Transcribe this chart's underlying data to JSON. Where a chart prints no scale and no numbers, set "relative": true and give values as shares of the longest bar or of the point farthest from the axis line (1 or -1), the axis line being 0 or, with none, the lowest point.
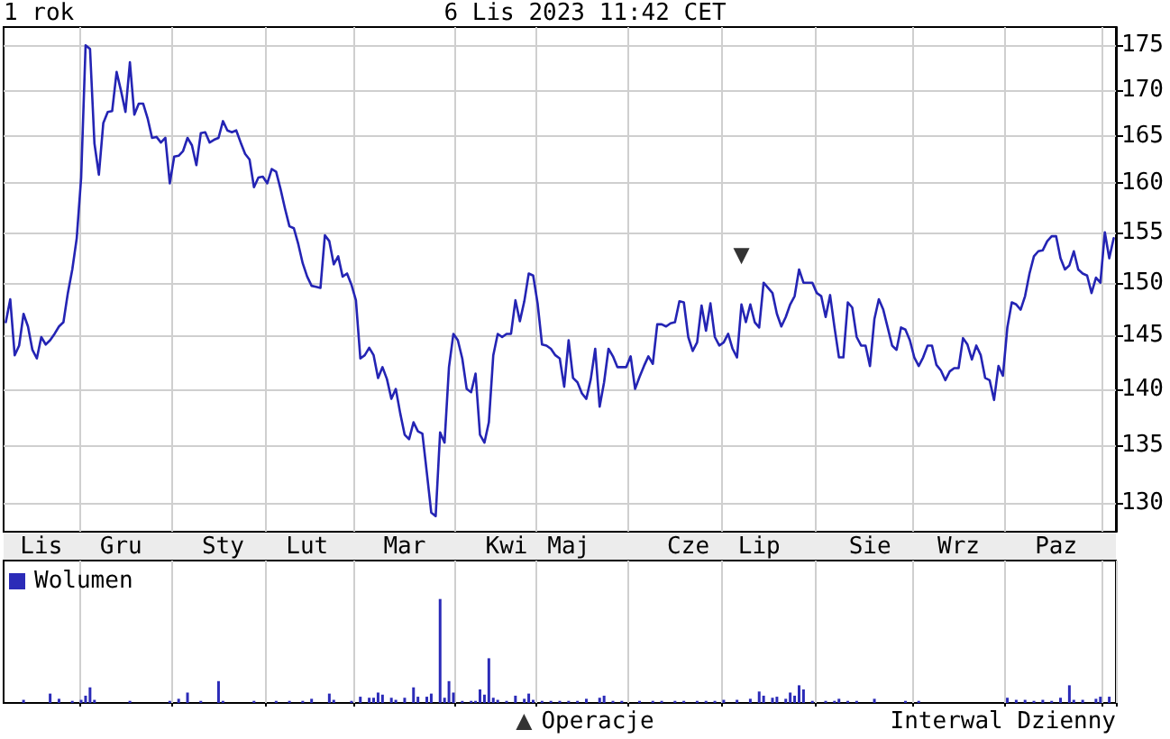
{
  "chart_data": [
    {
      "type": "line",
      "title": "1 rok",
      "subtitle": "6 Lis 2023 11:42 CET",
      "annotations": [
        "Interwal Dzienny"
      ],
      "categories": [
        null,
        null,
        null,
        null,
        null,
        null,
        null,
        null,
        "Lis",
        null,
        null,
        null,
        null,
        null,
        null,
        null,
        null,
        null,
        null,
        null,
        null,
        null,
        null,
        null,
        null,
        null,
        "Gru",
        null,
        null,
        null,
        null,
        null,
        null,
        null,
        null,
        null,
        null,
        null,
        null,
        null,
        null,
        null,
        null,
        null,
        null,
        null,
        null,
        null,
        null,
        "Sty",
        null,
        null,
        null,
        null,
        null,
        null,
        null,
        null,
        null,
        null,
        null,
        null,
        null,
        null,
        null,
        null,
        null,
        null,
        "Lut",
        null,
        null,
        null,
        null,
        null,
        null,
        null,
        null,
        null,
        null,
        null,
        null,
        null,
        null,
        null,
        null,
        null,
        null,
        null,
        null,
        null,
        "Mar",
        null,
        null,
        null,
        null,
        null,
        null,
        null,
        null,
        null,
        null,
        null,
        null,
        null,
        null,
        null,
        null,
        null,
        null,
        null,
        null,
        null,
        null,
        "Kwi",
        null,
        null,
        null,
        null,
        null,
        null,
        null,
        null,
        null,
        null,
        null,
        null,
        null,
        "Maj",
        null,
        null,
        null,
        null,
        null,
        null,
        null,
        null,
        null,
        null,
        null,
        null,
        null,
        null,
        null,
        null,
        null,
        null,
        null,
        null,
        null,
        null,
        null,
        null,
        null,
        null,
        "Cze",
        null,
        null,
        null,
        null,
        null,
        null,
        null,
        null,
        null,
        null,
        null,
        null,
        null,
        null,
        null,
        "Lip",
        null,
        null,
        null,
        null,
        null,
        null,
        null,
        null,
        null,
        null,
        null,
        null,
        null,
        null,
        null,
        null,
        null,
        null,
        null,
        null,
        null,
        null,
        null,
        null,
        "Sie",
        null,
        null,
        null,
        null,
        null,
        null,
        null,
        null,
        null,
        null,
        null,
        null,
        null,
        null,
        null,
        null,
        null,
        null,
        null,
        "Wrz",
        null,
        null,
        null,
        null,
        null,
        null,
        null,
        null,
        null,
        null,
        null,
        null,
        null,
        null,
        null,
        null,
        null,
        null,
        null,
        null,
        null,
        "Paz",
        null,
        null,
        null,
        null,
        null,
        null,
        null,
        null,
        null,
        null,
        null,
        null,
        null
      ],
      "ylim": [
        127.6,
        177.1
      ],
      "yticks": [
        130,
        135,
        140,
        145,
        150,
        155,
        160,
        165,
        170,
        175
      ],
      "log": true,
      "grid": true,
      "legend": "bottom",
      "marker": "none",
      "series": [
        {
          "color": "#2424b4",
          "values": [
            146.2,
            148.4,
            143.1,
            144,
            147,
            145.8,
            143.6,
            142.8,
            144.8,
            144.1,
            144.5,
            145.1,
            145.8,
            146.2,
            149,
            151.3,
            154.4,
            160.6,
            175,
            174.6,
            164.2,
            160.9,
            166.4,
            167.6,
            167.7,
            172,
            169.9,
            167.6,
            173.1,
            167.3,
            168.5,
            168.5,
            166.9,
            164.8,
            164.9,
            164.3,
            164.8,
            160,
            162.8,
            162.9,
            163.4,
            164.8,
            164,
            161.9,
            165.3,
            165.4,
            164.3,
            164.6,
            164.8,
            166.6,
            165.6,
            165.4,
            165.6,
            164.3,
            163.1,
            162.5,
            159.6,
            160.6,
            160.7,
            160,
            161.5,
            161.2,
            159.4,
            157.4,
            155.6,
            155.4,
            153.8,
            151.9,
            150.6,
            149.7,
            149.6,
            149.5,
            154.7,
            154.1,
            151.8,
            152.6,
            150.6,
            150.9,
            149.8,
            148.3,
            142.8,
            143.1,
            143.8,
            143.1,
            141,
            142,
            140.9,
            139.1,
            140,
            137.8,
            135.9,
            135.5,
            137,
            136.2,
            136,
            132.6,
            129.2,
            128.9,
            136.1,
            135.2,
            142,
            145.1,
            144.5,
            142.8,
            140,
            139.7,
            141.4,
            135.9,
            135.2,
            137,
            143.1,
            145.1,
            144.8,
            145.1,
            145.1,
            148.3,
            146.3,
            148.2,
            150.9,
            150.7,
            148,
            144.1,
            144,
            143.7,
            143.1,
            142.8,
            140.2,
            144.5,
            141,
            140.6,
            139.6,
            139.1,
            140.9,
            143.7,
            138.4,
            140.6,
            143.7,
            143,
            142,
            142,
            142,
            143,
            140,
            141.1,
            142.1,
            143,
            142.3,
            146,
            146,
            145.8,
            146.1,
            146.2,
            148.2,
            148.1,
            144.8,
            143.5,
            144.3,
            147.8,
            145.4,
            148,
            144.8,
            144,
            144.3,
            145.1,
            143.7,
            142.9,
            147.9,
            146.2,
            147.9,
            146.2,
            145.7,
            150,
            149.5,
            149,
            147,
            145.8,
            146.7,
            147.9,
            148.7,
            151.3,
            150,
            150,
            150,
            149,
            148.7,
            146.7,
            148.8,
            145.7,
            142.9,
            142.9,
            148.1,
            147.6,
            144.8,
            144,
            144,
            142.1,
            146.5,
            148.4,
            147.4,
            145.7,
            144,
            143.6,
            145.7,
            145.5,
            144.5,
            142.9,
            142.1,
            142.9,
            144,
            144,
            142.2,
            141.7,
            140.8,
            141.6,
            141.9,
            141.9,
            144.7,
            144.1,
            142.7,
            144,
            143.1,
            141,
            140.8,
            139,
            142.1,
            141.2,
            145.7,
            148.1,
            147.9,
            147.4,
            148.7,
            150.9,
            152.6,
            153.1,
            153.2,
            154.1,
            154.6,
            154.6,
            152.4,
            151.3,
            151.7,
            153.1,
            151.3,
            150.9,
            150.7,
            149,
            150.5,
            150,
            155,
            152.4,
            154.4
          ]
        },
        {
          "name": "Operacje",
          "type": "scatter",
          "marker": "triangle",
          "color": "#000000",
          "values": [
            null,
            null,
            null,
            null,
            null,
            null,
            null,
            null,
            null,
            null,
            null,
            null,
            null,
            null,
            null,
            null,
            null,
            null,
            null,
            null,
            null,
            null,
            null,
            null,
            null,
            null,
            null,
            null,
            null,
            null,
            null,
            null,
            null,
            null,
            null,
            null,
            null,
            null,
            null,
            null,
            null,
            null,
            null,
            null,
            null,
            null,
            null,
            null,
            null,
            null,
            null,
            null,
            null,
            null,
            null,
            null,
            null,
            null,
            null,
            null,
            null,
            null,
            null,
            null,
            null,
            null,
            null,
            null,
            null,
            null,
            null,
            null,
            null,
            null,
            null,
            null,
            null,
            null,
            null,
            null,
            null,
            null,
            null,
            null,
            null,
            null,
            null,
            null,
            null,
            null,
            null,
            null,
            null,
            null,
            null,
            null,
            null,
            null,
            null,
            null,
            null,
            null,
            null,
            null,
            null,
            null,
            null,
            null,
            null,
            null,
            null,
            null,
            null,
            null,
            null,
            null,
            null,
            null,
            null,
            null,
            null,
            null,
            null,
            null,
            null,
            null,
            null,
            null,
            null,
            null,
            null,
            null,
            null,
            null,
            null,
            null,
            null,
            null,
            null,
            null,
            null,
            null,
            null,
            null,
            null,
            null,
            null,
            null,
            null,
            null,
            null,
            null,
            null,
            null,
            null,
            null,
            null,
            null,
            null,
            null,
            null,
            null,
            null,
            null,
            null,
            null,
            152.6,
            null,
            null,
            null,
            null,
            null,
            null,
            null,
            null,
            null,
            null,
            null,
            null,
            null,
            null,
            null,
            null,
            null,
            null,
            null,
            null,
            null,
            null,
            null,
            null,
            null,
            null,
            null,
            null,
            null,
            null,
            null,
            null,
            null,
            null,
            null,
            null,
            null,
            null,
            null,
            null,
            null,
            null,
            null,
            null,
            null,
            null,
            null,
            null,
            null,
            null,
            null,
            null,
            null,
            null,
            null,
            null,
            null,
            null,
            null,
            null,
            null,
            null,
            null,
            null,
            null,
            null,
            null,
            null,
            null,
            null,
            null,
            null,
            null,
            null,
            null,
            null,
            null,
            null,
            null,
            null,
            null,
            null,
            null,
            null
          ]
        }
      ]
    },
    {
      "type": "bar",
      "relative": true,
      "tick_labels": false,
      "grid": "x",
      "legend": "top left",
      "categories": [
        null,
        null,
        null,
        null,
        null,
        null,
        null,
        null,
        null,
        null,
        null,
        null,
        null,
        null,
        null,
        null,
        null,
        null,
        null,
        null,
        null,
        null,
        null,
        null,
        null,
        null,
        null,
        null,
        null,
        null,
        null,
        null,
        null,
        null,
        null,
        null,
        null,
        null,
        null,
        null,
        null,
        null,
        null,
        null,
        null,
        null,
        null,
        null,
        null,
        null,
        null,
        null,
        null,
        null,
        null,
        null,
        null,
        null,
        null,
        null,
        null,
        null,
        null,
        null,
        null,
        null,
        null,
        null,
        null,
        null,
        null,
        null,
        null,
        null,
        null,
        null,
        null,
        null,
        null,
        null,
        null,
        null,
        null,
        null,
        null,
        null,
        null,
        null,
        null,
        null,
        null,
        null,
        null,
        null,
        null,
        null,
        null,
        null,
        null,
        null,
        null,
        null,
        null,
        null,
        null,
        null,
        null,
        null,
        null,
        null,
        null,
        null,
        null,
        null,
        null,
        null,
        null,
        null,
        null,
        null,
        null,
        null,
        null,
        null,
        null,
        null,
        null,
        null,
        null,
        null,
        null,
        null,
        null,
        null,
        null,
        null,
        null,
        null,
        null,
        null,
        null,
        null,
        null,
        null,
        null,
        null,
        null,
        null,
        null,
        null,
        null,
        null,
        null,
        null,
        null,
        null,
        null,
        null,
        null,
        null,
        null,
        null,
        null,
        null,
        null,
        null,
        null,
        null,
        null,
        null,
        null,
        null,
        null,
        null,
        null,
        null,
        null,
        null,
        null,
        null,
        null,
        null,
        null,
        null,
        null,
        null,
        null,
        null,
        null,
        null,
        null,
        null,
        null,
        null,
        null,
        null,
        null,
        null,
        null,
        null,
        null,
        null,
        null,
        null,
        null,
        null,
        null,
        null,
        null,
        null,
        null,
        null,
        null,
        null,
        null,
        null,
        null,
        null,
        null,
        null,
        null,
        null,
        null,
        null,
        null,
        null,
        null,
        null,
        null,
        null,
        null,
        null,
        null,
        null,
        null,
        null,
        null,
        null,
        null,
        null,
        null,
        null,
        null,
        null,
        null,
        null,
        null,
        null,
        null,
        null,
        null
      ],
      "series": [
        {
          "name": "Wolumen",
          "color": "#2b2bb8",
          "values": [
            null,
            null,
            null,
            null,
            0.03,
            null,
            null,
            null,
            null,
            null,
            0.09,
            null,
            0.04,
            null,
            null,
            0.02,
            null,
            0.03,
            0.07,
            0.15,
            0.03,
            null,
            null,
            null,
            null,
            null,
            null,
            null,
            0.02,
            null,
            null,
            null,
            null,
            null,
            null,
            null,
            null,
            0.02,
            null,
            0.04,
            null,
            0.1,
            null,
            null,
            0.02,
            null,
            null,
            null,
            0.21,
            0.02,
            null,
            null,
            null,
            null,
            null,
            null,
            0.02,
            null,
            null,
            null,
            null,
            0.02,
            null,
            null,
            0.02,
            null,
            null,
            0.02,
            null,
            0.04,
            null,
            null,
            null,
            0.09,
            0.03,
            null,
            null,
            null,
            0.02,
            null,
            0.06,
            null,
            0.05,
            0.05,
            0.1,
            0.08,
            null,
            0.05,
            0.03,
            null,
            0.05,
            null,
            0.15,
            0.06,
            null,
            0.06,
            0.09,
            null,
            1,
            0.05,
            0.21,
            0.1,
            null,
            0.02,
            null,
            0.02,
            0.02,
            0.13,
            0.08,
            0.43,
            0.05,
            0.03,
            null,
            0.02,
            null,
            0.07,
            null,
            0.04,
            0.09,
            0.03,
            null,
            0.02,
            null,
            0.02,
            null,
            0.02,
            null,
            0.02,
            null,
            0.02,
            null,
            0.04,
            null,
            null,
            0.05,
            0.07,
            null,
            0.02,
            null,
            0.02,
            null,
            null,
            null,
            0.02,
            null,
            null,
            0.02,
            null,
            0.02,
            null,
            null,
            0.02,
            null,
            0.02,
            null,
            null,
            0.02,
            null,
            0.02,
            null,
            0.02,
            null,
            0.03,
            null,
            null,
            0.03,
            null,
            null,
            0.04,
            null,
            0.11,
            0.07,
            null,
            0.05,
            0.06,
            null,
            0.04,
            0.1,
            0.07,
            0.17,
            0.13,
            null,
            0.02,
            null,
            null,
            0.02,
            null,
            0.02,
            0.04,
            null,
            0.02,
            null,
            0.02,
            null,
            null,
            null,
            0.04,
            null,
            null,
            null,
            null,
            null,
            null,
            0.02,
            null,
            null,
            0.02,
            null,
            null,
            null,
            null,
            null,
            null,
            null,
            null,
            null,
            null,
            null,
            null,
            null,
            null,
            null,
            null,
            null,
            null,
            null,
            0.05,
            null,
            0.03,
            null,
            0.03,
            null,
            0.02,
            null,
            0.03,
            null,
            0.02,
            null,
            0.05,
            null,
            0.17,
            0.03,
            null,
            0.03,
            null,
            null,
            0.04,
            0.06,
            null,
            0.06,
            null
          ]
        }
      ]
    }
  ]
}
